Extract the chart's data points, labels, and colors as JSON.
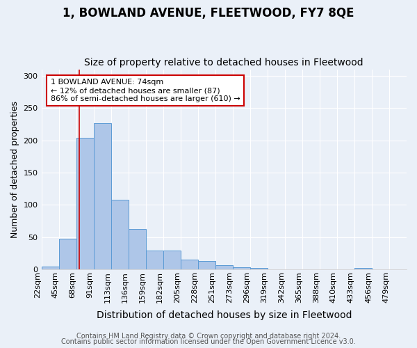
{
  "title": "1, BOWLAND AVENUE, FLEETWOOD, FY7 8QE",
  "subtitle": "Size of property relative to detached houses in Fleetwood",
  "xlabel": "Distribution of detached houses by size in Fleetwood",
  "ylabel": "Number of detached properties",
  "bar_values": [
    4,
    47,
    204,
    226,
    108,
    63,
    29,
    29,
    15,
    13,
    6,
    3,
    2,
    0,
    0,
    0,
    0,
    0,
    2,
    0,
    0
  ],
  "bar_labels": [
    "22sqm",
    "45sqm",
    "68sqm",
    "91sqm",
    "113sqm",
    "136sqm",
    "159sqm",
    "182sqm",
    "205sqm",
    "228sqm",
    "251sqm",
    "273sqm",
    "296sqm",
    "319sqm",
    "342sqm",
    "365sqm",
    "388sqm",
    "410sqm",
    "433sqm",
    "456sqm",
    "479sqm"
  ],
  "bar_color": "#aec6e8",
  "bar_edge_color": "#5b9bd5",
  "bar_edge_width": 0.7,
  "ylim": [
    0,
    310
  ],
  "yticks": [
    0,
    50,
    100,
    150,
    200,
    250,
    300
  ],
  "red_line_x": 2.17,
  "annotation_title": "1 BOWLAND AVENUE: 74sqm",
  "annotation_line2": "← 12% of detached houses are smaller (87)",
  "annotation_line3": "86% of semi-detached houses are larger (610) →",
  "annotation_box_color": "#ffffff",
  "annotation_box_edge": "#cc0000",
  "footer1": "Contains HM Land Registry data © Crown copyright and database right 2024.",
  "footer2": "Contains public sector information licensed under the Open Government Licence v3.0.",
  "background_color": "#eaf0f8",
  "grid_color": "#ffffff",
  "title_fontsize": 12,
  "subtitle_fontsize": 10,
  "xlabel_fontsize": 10,
  "ylabel_fontsize": 9,
  "tick_fontsize": 8,
  "annotation_fontsize": 8,
  "footer_fontsize": 7
}
